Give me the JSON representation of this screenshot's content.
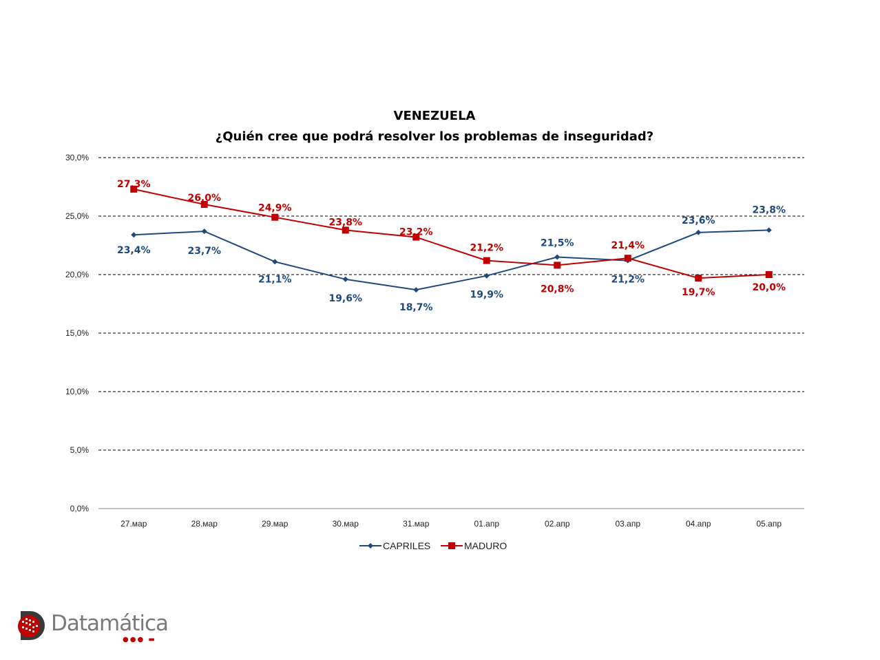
{
  "chart_data": {
    "type": "line",
    "title": "VENEZUELA",
    "subtitle": "¿Quién cree que podrá resolver los problemas de inseguridad?",
    "categories": [
      "27.мар",
      "28.мар",
      "29.мар",
      "30.мар",
      "31.мар",
      "01.апр",
      "02.апр",
      "03.апр",
      "04.апр",
      "05.апр"
    ],
    "ylim": [
      0,
      30
    ],
    "yticks": [
      0,
      5,
      10,
      15,
      20,
      25,
      30
    ],
    "ytick_labels": [
      "0,0%",
      "5,0%",
      "10,0%",
      "15,0%",
      "20,0%",
      "25,0%",
      "30,0%"
    ],
    "grid": true,
    "legend": "bottom",
    "series": [
      {
        "name": "CAPRILES",
        "color": "#1F497D",
        "marker": "diamond",
        "values": [
          23.4,
          23.7,
          21.1,
          19.6,
          18.7,
          19.9,
          21.5,
          21.2,
          23.6,
          23.8
        ],
        "labels": [
          "23,4%",
          "23,7%",
          "21,1%",
          "19,6%",
          "18,7%",
          "19,9%",
          "21,5%",
          "21,2%",
          "23,6%",
          "23,8%"
        ]
      },
      {
        "name": "MADURO",
        "color": "#C00000",
        "marker": "square",
        "values": [
          27.3,
          26.0,
          24.9,
          23.8,
          23.2,
          21.2,
          20.8,
          21.4,
          19.7,
          20.0
        ],
        "labels": [
          "27,3%",
          "26,0%",
          "24,9%",
          "23,8%",
          "23,2%",
          "21,2%",
          "20,8%",
          "21,4%",
          "19,7%",
          "20,0%"
        ]
      }
    ]
  },
  "logo": {
    "name": "Datamática",
    "icon": "datamatica-logo-icon",
    "color": "#C00000"
  }
}
